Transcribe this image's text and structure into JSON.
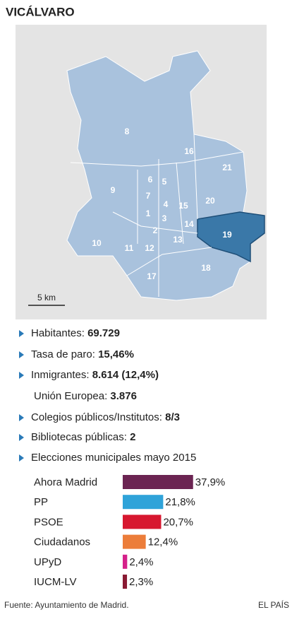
{
  "title": "VICÁLVARO",
  "map": {
    "districts": [
      "8",
      "16",
      "21",
      "9",
      "6",
      "5",
      "7",
      "4",
      "15",
      "20",
      "1",
      "3",
      "14",
      "19",
      "2",
      "13",
      "10",
      "11",
      "12",
      "17",
      "18"
    ],
    "scale": "5 km"
  },
  "stats": [
    {
      "label": "Habitantes:",
      "value": "69.729"
    },
    {
      "label": "Tasa de paro:",
      "value": "15,46%"
    },
    {
      "label": "Inmigrantes:",
      "value": "8.614 (12,4%)"
    },
    {
      "label": "Unión Europea:",
      "value": "3.876"
    },
    {
      "label": "Colegios públicos/Institutos:",
      "value": "8/3"
    },
    {
      "label": "Bibliotecas públicas:",
      "value": "2"
    },
    {
      "label": "Elecciones municipales mayo 2015"
    }
  ],
  "chart_data": {
    "type": "bar",
    "categories": [
      "Ahora Madrid",
      "PP",
      "PSOE",
      "Ciudadanos",
      "UPyD",
      "IUCM-LV"
    ],
    "values": [
      37.9,
      21.8,
      20.7,
      12.4,
      2.4,
      2.3
    ],
    "value_labels": [
      "37,9%",
      "21,8%",
      "20,7%",
      "12,4%",
      "2,4%",
      "2,3%"
    ],
    "colors": [
      "#6b2452",
      "#2fa3d9",
      "#d7172f",
      "#ec7d3a",
      "#d5218a",
      "#8a1a33"
    ]
  },
  "footer": {
    "source": "Fuente: Ayuntamiento de Madrid.",
    "brand": "EL PAÍS"
  }
}
